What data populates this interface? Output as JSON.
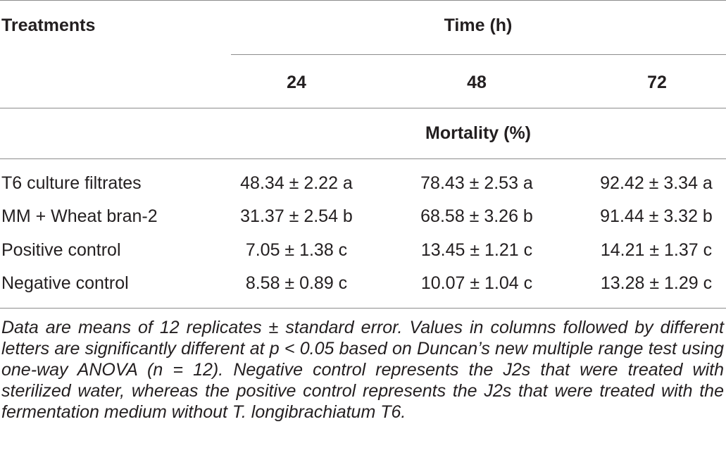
{
  "table": {
    "header": {
      "treatments_label": "Treatments",
      "time_label": "Time (h)",
      "time_columns": [
        "24",
        "48",
        "72"
      ],
      "measure_label": "Mortality (%)"
    },
    "rows": [
      {
        "treatment": "T6 culture filtrates",
        "values": [
          "48.34 ± 2.22 a",
          "78.43 ± 2.53 a",
          "92.42 ± 3.34 a"
        ]
      },
      {
        "treatment": "MM + Wheat bran-2",
        "values": [
          "31.37 ± 2.54 b",
          "68.58 ± 3.26 b",
          "91.44 ± 3.32 b"
        ]
      },
      {
        "treatment": "Positive control",
        "values": [
          "7.05 ± 1.38 c",
          "13.45 ± 1.21 c",
          "14.21 ± 1.37 c"
        ]
      },
      {
        "treatment": "Negative control",
        "values": [
          "8.58 ± 0.89 c",
          "10.07 ± 1.04 c",
          "13.28 ± 1.29 c"
        ]
      }
    ],
    "footnote": "Data are means of 12 replicates ± standard error. Values in columns followed by different letters are significantly different at p < 0.05 based on Duncan’s new multiple range test using one-way ANOVA (n = 12). Negative control represents the J2s that were treated with sterilized water, whereas the positive control represents the J2s that were treated with the fermentation medium without T. longibrachiatum T6."
  }
}
